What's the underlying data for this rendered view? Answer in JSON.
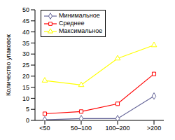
{
  "chart_data": {
    "type": "line",
    "ylabel": "Количество упаковок",
    "categories": [
      "<50",
      "50–100",
      "100–200",
      ">200"
    ],
    "series": [
      {
        "name": "Минимальное",
        "color": "#666699",
        "marker": "diamond",
        "values": [
          0.3,
          0.8,
          0.8,
          11
        ]
      },
      {
        "name": "Среднее",
        "color": "#ff0000",
        "marker": "square",
        "values": [
          3,
          4,
          7.5,
          21
        ]
      },
      {
        "name": "Максимальное",
        "color": "#ffff00",
        "marker": "triangle",
        "values": [
          18,
          16,
          28,
          34
        ]
      }
    ],
    "ylim": [
      0,
      50
    ],
    "yticks": [
      0,
      5,
      10,
      15,
      20,
      25,
      30,
      35,
      40,
      45,
      50
    ],
    "grid": false,
    "legend": "upper left"
  }
}
